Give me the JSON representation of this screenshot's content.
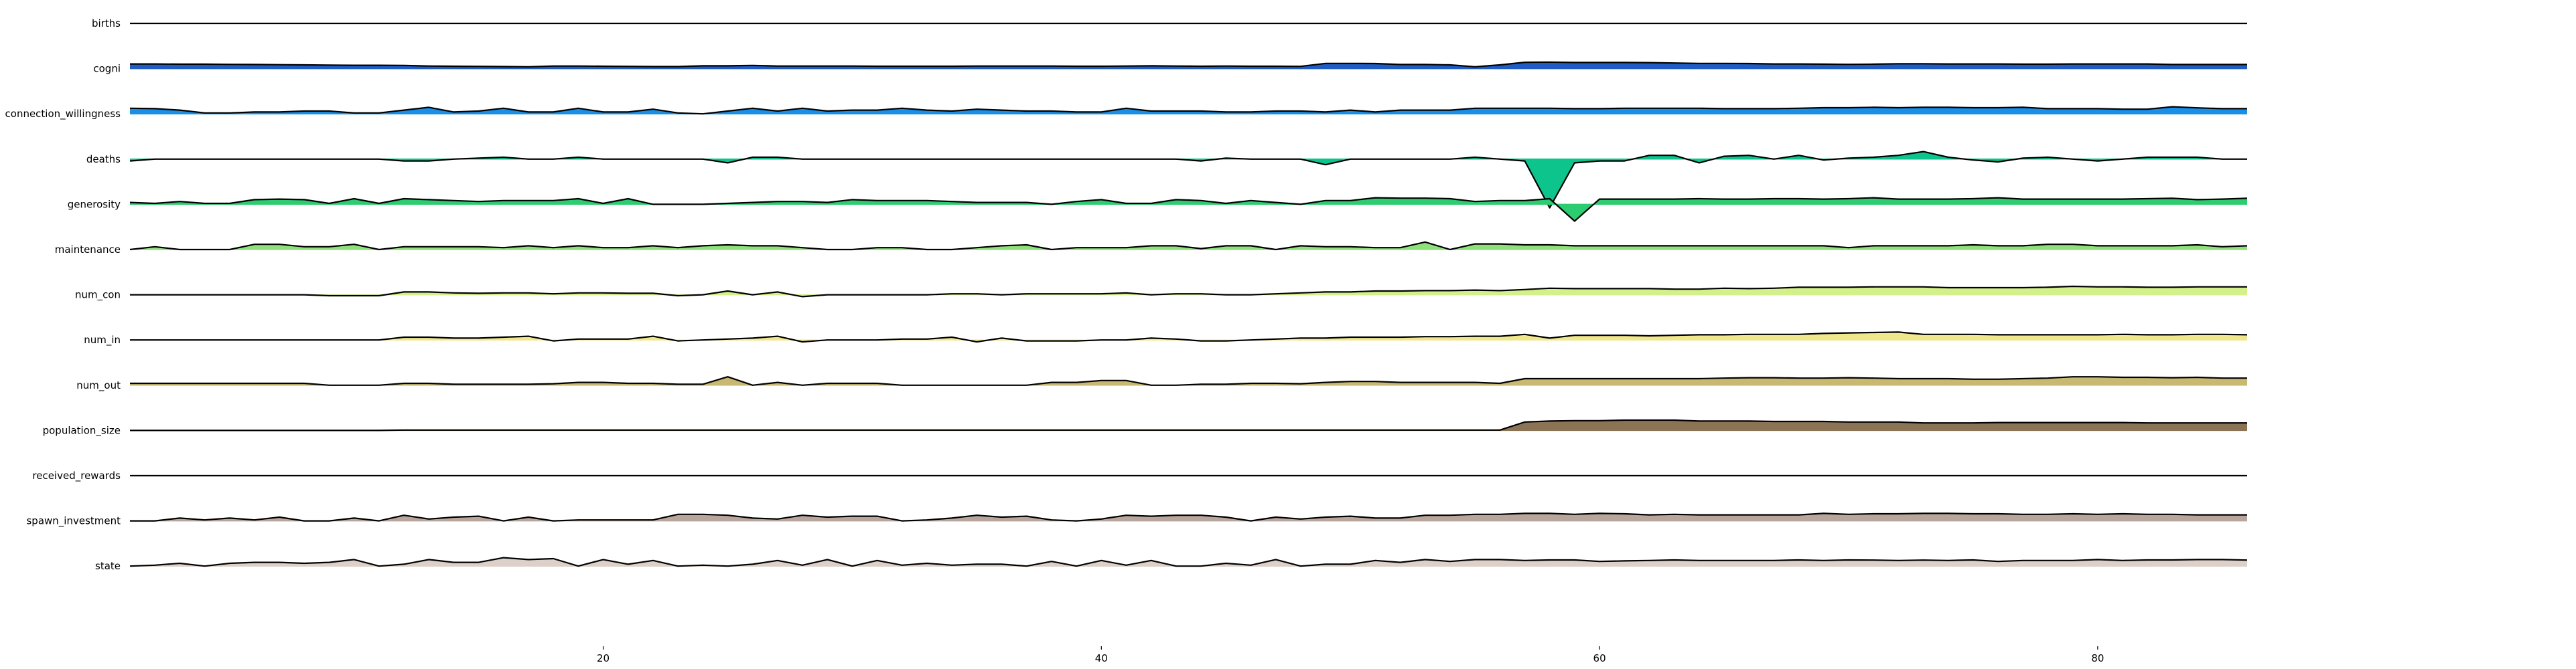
{
  "chart_data": {
    "type": "area",
    "layout": "ridgeline",
    "title": "",
    "xlabel": "",
    "ylabel": "",
    "x": [
      1,
      2,
      3,
      4,
      5,
      6,
      7,
      8,
      9,
      10,
      11,
      12,
      13,
      14,
      15,
      16,
      17,
      18,
      19,
      20,
      21,
      22,
      23,
      24,
      25,
      26,
      27,
      28,
      29,
      30,
      31,
      32,
      33,
      34,
      35,
      36,
      37,
      38,
      39,
      40,
      41,
      42,
      43,
      44,
      45,
      46,
      47,
      48,
      49,
      50,
      51,
      52,
      53,
      54,
      55,
      56,
      57,
      58,
      59,
      60,
      61,
      62,
      63,
      64,
      65,
      66,
      67,
      68,
      69,
      70,
      71,
      72,
      73,
      74,
      75,
      76,
      77,
      78,
      79,
      80,
      81,
      82,
      83,
      84,
      85,
      86
    ],
    "xlim": [
      1,
      86
    ],
    "xticks": [
      20,
      40,
      60,
      80
    ],
    "ylim": [
      -1,
      1
    ],
    "series": [
      {
        "name": "births",
        "color": "#0d0887",
        "values": [
          0,
          0,
          0,
          0,
          0,
          0,
          0,
          0,
          0,
          0,
          0,
          0,
          0,
          0,
          0,
          0,
          0,
          0,
          0,
          0,
          0,
          0,
          0,
          0,
          0,
          0,
          0,
          0,
          0,
          0,
          0,
          0,
          0,
          0,
          0,
          0,
          0,
          0,
          0,
          0,
          0,
          0,
          0,
          0,
          0,
          0,
          0,
          0,
          0,
          0,
          0,
          0,
          0,
          0,
          0,
          0,
          0,
          0,
          0,
          0,
          0,
          0,
          0,
          0,
          0,
          0,
          0,
          0,
          0,
          0,
          0,
          0,
          0,
          0,
          0,
          0,
          0,
          0,
          0,
          0,
          0,
          0,
          0,
          0,
          0,
          0
        ]
      },
      {
        "name": "cogni",
        "color": "#1f5cc4",
        "values": [
          0.25,
          0.25,
          0.24,
          0.24,
          0.23,
          0.22,
          0.21,
          0.2,
          0.19,
          0.18,
          0.18,
          0.17,
          0.14,
          0.13,
          0.12,
          0.11,
          0.1,
          0.14,
          0.14,
          0.13,
          0.12,
          0.11,
          0.11,
          0.15,
          0.15,
          0.17,
          0.14,
          0.14,
          0.14,
          0.14,
          0.13,
          0.13,
          0.13,
          0.13,
          0.14,
          0.14,
          0.14,
          0.14,
          0.13,
          0.13,
          0.14,
          0.15,
          0.14,
          0.13,
          0.14,
          0.13,
          0.13,
          0.12,
          0.28,
          0.28,
          0.27,
          0.22,
          0.22,
          0.2,
          0.1,
          0.2,
          0.34,
          0.35,
          0.33,
          0.33,
          0.33,
          0.32,
          0.3,
          0.28,
          0.28,
          0.27,
          0.25,
          0.25,
          0.24,
          0.23,
          0.24,
          0.26,
          0.26,
          0.25,
          0.25,
          0.25,
          0.24,
          0.24,
          0.25,
          0.25,
          0.25,
          0.25,
          0.22,
          0.22,
          0.22,
          0.22
        ]
      },
      {
        "name": "connection_willingness",
        "color": "#1a8fe8",
        "values": [
          0.3,
          0.28,
          0.2,
          0.05,
          0.05,
          0.1,
          0.1,
          0.15,
          0.15,
          0.05,
          0.05,
          0.2,
          0.35,
          0.1,
          0.15,
          0.3,
          0.1,
          0.1,
          0.3,
          0.1,
          0.1,
          0.25,
          0.05,
          0.0,
          0.15,
          0.3,
          0.15,
          0.3,
          0.15,
          0.2,
          0.2,
          0.3,
          0.2,
          0.15,
          0.25,
          0.2,
          0.15,
          0.15,
          0.1,
          0.1,
          0.3,
          0.15,
          0.15,
          0.15,
          0.1,
          0.1,
          0.15,
          0.15,
          0.1,
          0.2,
          0.1,
          0.2,
          0.2,
          0.2,
          0.3,
          0.3,
          0.3,
          0.3,
          0.28,
          0.28,
          0.3,
          0.3,
          0.3,
          0.3,
          0.28,
          0.28,
          0.28,
          0.3,
          0.33,
          0.33,
          0.35,
          0.33,
          0.35,
          0.35,
          0.33,
          0.33,
          0.35,
          0.28,
          0.28,
          0.28,
          0.25,
          0.25,
          0.38,
          0.32,
          0.28,
          0.28
        ]
      },
      {
        "name": "deaths",
        "color": "#0cc48c",
        "values": [
          -0.1,
          0.0,
          0.0,
          0.0,
          0.0,
          0.0,
          0.0,
          0.0,
          0.0,
          0.0,
          0.0,
          -0.1,
          -0.1,
          0.0,
          0.05,
          0.1,
          0.0,
          0.0,
          0.1,
          0.0,
          0.0,
          0.0,
          0.0,
          0.0,
          -0.2,
          0.1,
          0.1,
          0.0,
          0.0,
          0.0,
          0.0,
          0.0,
          0.0,
          0.0,
          0.0,
          0.0,
          0.0,
          0.0,
          0.0,
          0.0,
          0.0,
          0.0,
          0.0,
          -0.1,
          0.05,
          0.0,
          0.0,
          0.0,
          -0.3,
          0.0,
          0.0,
          0.0,
          0.0,
          0.0,
          0.1,
          0.0,
          -0.1,
          -2.6,
          -0.2,
          -0.1,
          -0.1,
          0.2,
          0.2,
          -0.2,
          0.15,
          0.2,
          0.0,
          0.2,
          -0.05,
          0.05,
          0.1,
          0.2,
          0.4,
          0.1,
          -0.05,
          -0.15,
          0.05,
          0.1,
          0.0,
          -0.1,
          0.0,
          0.1,
          0.1,
          0.1,
          0.0,
          0.0
        ]
      },
      {
        "name": "generosity",
        "color": "#2ecc71",
        "values": [
          0.1,
          0.05,
          0.15,
          0.05,
          0.05,
          0.25,
          0.28,
          0.25,
          0.05,
          0.3,
          0.05,
          0.3,
          0.25,
          0.2,
          0.15,
          0.2,
          0.2,
          0.2,
          0.3,
          0.05,
          0.3,
          0.0,
          0.0,
          0.0,
          0.05,
          0.1,
          0.15,
          0.15,
          0.1,
          0.25,
          0.2,
          0.2,
          0.2,
          0.15,
          0.1,
          0.1,
          0.1,
          0.0,
          0.15,
          0.25,
          0.05,
          0.05,
          0.25,
          0.2,
          0.05,
          0.2,
          0.1,
          0.0,
          0.2,
          0.2,
          0.35,
          0.33,
          0.33,
          0.3,
          0.15,
          0.2,
          0.2,
          0.3,
          -0.9,
          0.28,
          0.28,
          0.28,
          0.28,
          0.3,
          0.28,
          0.28,
          0.3,
          0.3,
          0.28,
          0.3,
          0.35,
          0.28,
          0.28,
          0.28,
          0.3,
          0.35,
          0.28,
          0.28,
          0.28,
          0.28,
          0.28,
          0.3,
          0.32,
          0.25,
          0.28,
          0.32
        ]
      },
      {
        "name": "maintenance",
        "color": "#8ee07a",
        "values": [
          0.0,
          0.15,
          0.0,
          0.0,
          0.0,
          0.28,
          0.28,
          0.15,
          0.15,
          0.28,
          0.0,
          0.15,
          0.15,
          0.15,
          0.15,
          0.1,
          0.2,
          0.1,
          0.2,
          0.1,
          0.1,
          0.2,
          0.1,
          0.2,
          0.25,
          0.2,
          0.2,
          0.1,
          0.0,
          0.0,
          0.1,
          0.1,
          0.0,
          0.0,
          0.1,
          0.2,
          0.25,
          0.0,
          0.1,
          0.1,
          0.1,
          0.2,
          0.2,
          0.05,
          0.2,
          0.2,
          0.0,
          0.2,
          0.15,
          0.15,
          0.1,
          0.1,
          0.4,
          0.0,
          0.3,
          0.3,
          0.25,
          0.25,
          0.2,
          0.2,
          0.2,
          0.2,
          0.2,
          0.2,
          0.2,
          0.2,
          0.2,
          0.2,
          0.2,
          0.1,
          0.2,
          0.2,
          0.2,
          0.2,
          0.25,
          0.2,
          0.2,
          0.28,
          0.28,
          0.2,
          0.2,
          0.2,
          0.2,
          0.25,
          0.15,
          0.2
        ]
      },
      {
        "name": "num_con",
        "color": "#d4f08a",
        "values": [
          0.0,
          0.0,
          0.0,
          0.0,
          0.0,
          0.0,
          0.0,
          0.0,
          -0.05,
          -0.05,
          -0.05,
          0.15,
          0.15,
          0.1,
          0.08,
          0.1,
          0.1,
          0.05,
          0.1,
          0.1,
          0.08,
          0.08,
          -0.05,
          0.0,
          0.2,
          0.0,
          0.15,
          -0.1,
          0.0,
          0.0,
          0.0,
          0.0,
          0.0,
          0.05,
          0.05,
          0.0,
          0.05,
          0.05,
          0.05,
          0.05,
          0.1,
          0.0,
          0.05,
          0.05,
          0.0,
          0.0,
          0.05,
          0.1,
          0.15,
          0.15,
          0.2,
          0.2,
          0.22,
          0.22,
          0.25,
          0.22,
          0.28,
          0.35,
          0.33,
          0.33,
          0.33,
          0.33,
          0.3,
          0.3,
          0.35,
          0.33,
          0.35,
          0.4,
          0.4,
          0.4,
          0.42,
          0.42,
          0.42,
          0.38,
          0.38,
          0.38,
          0.38,
          0.4,
          0.45,
          0.42,
          0.42,
          0.4,
          0.4,
          0.42,
          0.42,
          0.42
        ]
      },
      {
        "name": "num_in",
        "color": "#f0e68c",
        "values": [
          0.0,
          0.0,
          0.0,
          0.0,
          0.0,
          0.0,
          0.0,
          0.0,
          0.0,
          0.0,
          0.0,
          0.15,
          0.15,
          0.1,
          0.1,
          0.15,
          0.2,
          -0.05,
          0.05,
          0.05,
          0.05,
          0.2,
          -0.05,
          0.0,
          0.05,
          0.1,
          0.2,
          -0.1,
          0.0,
          0.0,
          0.0,
          0.05,
          0.05,
          0.15,
          -0.1,
          0.1,
          -0.05,
          -0.05,
          -0.05,
          0.0,
          0.0,
          0.1,
          0.05,
          -0.05,
          -0.05,
          0.0,
          0.05,
          0.1,
          0.1,
          0.15,
          0.15,
          0.15,
          0.18,
          0.18,
          0.2,
          0.2,
          0.3,
          0.1,
          0.25,
          0.25,
          0.25,
          0.22,
          0.25,
          0.28,
          0.28,
          0.3,
          0.3,
          0.3,
          0.35,
          0.38,
          0.4,
          0.42,
          0.3,
          0.3,
          0.3,
          0.28,
          0.28,
          0.28,
          0.28,
          0.28,
          0.3,
          0.28,
          0.28,
          0.3,
          0.3,
          0.28
        ]
      },
      {
        "name": "num_out",
        "color": "#c8b870",
        "values": [
          0.1,
          0.1,
          0.1,
          0.1,
          0.1,
          0.1,
          0.1,
          0.1,
          0.0,
          0.0,
          0.0,
          0.1,
          0.1,
          0.05,
          0.05,
          0.05,
          0.05,
          0.08,
          0.15,
          0.15,
          0.1,
          0.1,
          0.05,
          0.05,
          0.45,
          0.0,
          0.15,
          0.0,
          0.1,
          0.1,
          0.1,
          0.0,
          0.0,
          0.0,
          0.0,
          0.0,
          0.0,
          0.15,
          0.15,
          0.25,
          0.25,
          0.0,
          0.0,
          0.05,
          0.05,
          0.1,
          0.1,
          0.08,
          0.15,
          0.2,
          0.2,
          0.15,
          0.15,
          0.15,
          0.15,
          0.1,
          0.35,
          0.35,
          0.35,
          0.35,
          0.35,
          0.35,
          0.35,
          0.35,
          0.38,
          0.4,
          0.4,
          0.38,
          0.38,
          0.4,
          0.38,
          0.35,
          0.35,
          0.35,
          0.32,
          0.32,
          0.35,
          0.38,
          0.45,
          0.45,
          0.42,
          0.42,
          0.4,
          0.42,
          0.38,
          0.38
        ]
      },
      {
        "name": "population_size",
        "color": "#8b7355",
        "values": [
          0.0,
          0.0,
          0.0,
          0.0,
          0.0,
          0.0,
          0.0,
          0.0,
          0.0,
          0.0,
          0.0,
          0.02,
          0.02,
          0.02,
          0.02,
          0.02,
          0.02,
          0.02,
          0.02,
          0.02,
          0.02,
          0.02,
          0.02,
          0.02,
          0.02,
          0.02,
          0.02,
          0.02,
          0.02,
          0.02,
          0.02,
          0.02,
          0.02,
          0.02,
          0.02,
          0.02,
          0.02,
          0.02,
          0.02,
          0.02,
          0.02,
          0.02,
          0.02,
          0.02,
          0.02,
          0.02,
          0.02,
          0.02,
          0.02,
          0.02,
          0.02,
          0.02,
          0.02,
          0.02,
          0.02,
          0.02,
          0.45,
          0.5,
          0.52,
          0.52,
          0.55,
          0.55,
          0.55,
          0.5,
          0.5,
          0.5,
          0.48,
          0.48,
          0.48,
          0.45,
          0.45,
          0.45,
          0.4,
          0.4,
          0.4,
          0.42,
          0.42,
          0.42,
          0.42,
          0.42,
          0.42,
          0.4,
          0.4,
          0.4,
          0.4,
          0.4
        ]
      },
      {
        "name": "received_rewards",
        "color": "#a0522d",
        "values": [
          0,
          0,
          0,
          0,
          0,
          0,
          0,
          0,
          0,
          0,
          0,
          0,
          0,
          0,
          0,
          0,
          0,
          0,
          0,
          0,
          0,
          0,
          0,
          0,
          0,
          0,
          0,
          0,
          0,
          0,
          0,
          0,
          0,
          0,
          0,
          0,
          0,
          0,
          0,
          0,
          0,
          0,
          0,
          0,
          0,
          0,
          0,
          0,
          0,
          0,
          0,
          0,
          0,
          0,
          0,
          0,
          0,
          0,
          0,
          0,
          0,
          0,
          0,
          0,
          0,
          0,
          0,
          0,
          0,
          0,
          0,
          0,
          0,
          0,
          0,
          0,
          0,
          0,
          0,
          0,
          0,
          0,
          0,
          0,
          0,
          0
        ]
      },
      {
        "name": "spawn_investment",
        "color": "#b8a69c",
        "values": [
          0.0,
          0.0,
          0.15,
          0.05,
          0.15,
          0.05,
          0.2,
          0.0,
          0.0,
          0.15,
          0.0,
          0.3,
          0.1,
          0.2,
          0.25,
          0.0,
          0.2,
          0.0,
          0.05,
          0.05,
          0.05,
          0.05,
          0.35,
          0.35,
          0.3,
          0.15,
          0.1,
          0.3,
          0.2,
          0.25,
          0.25,
          0.0,
          0.05,
          0.15,
          0.3,
          0.2,
          0.25,
          0.05,
          0.0,
          0.1,
          0.3,
          0.25,
          0.3,
          0.3,
          0.2,
          0.0,
          0.2,
          0.1,
          0.2,
          0.25,
          0.15,
          0.15,
          0.3,
          0.3,
          0.35,
          0.35,
          0.4,
          0.4,
          0.35,
          0.4,
          0.38,
          0.32,
          0.35,
          0.32,
          0.32,
          0.32,
          0.32,
          0.32,
          0.4,
          0.35,
          0.38,
          0.38,
          0.4,
          0.4,
          0.38,
          0.38,
          0.35,
          0.35,
          0.38,
          0.35,
          0.38,
          0.35,
          0.35,
          0.32,
          0.32,
          0.32
        ]
      },
      {
        "name": "state",
        "color": "#ddd0c8",
        "values": [
          0.0,
          0.05,
          0.15,
          0.0,
          0.15,
          0.2,
          0.2,
          0.15,
          0.2,
          0.35,
          0.0,
          0.1,
          0.35,
          0.2,
          0.2,
          0.45,
          0.35,
          0.4,
          0.0,
          0.35,
          0.1,
          0.3,
          0.0,
          0.05,
          0.0,
          0.1,
          0.3,
          0.05,
          0.35,
          0.0,
          0.3,
          0.05,
          0.15,
          0.05,
          0.1,
          0.1,
          0.0,
          0.25,
          0.0,
          0.3,
          0.05,
          0.3,
          0.0,
          0.0,
          0.15,
          0.05,
          0.35,
          0.0,
          0.1,
          0.1,
          0.3,
          0.2,
          0.35,
          0.25,
          0.35,
          0.35,
          0.3,
          0.33,
          0.33,
          0.25,
          0.28,
          0.3,
          0.33,
          0.3,
          0.3,
          0.3,
          0.3,
          0.33,
          0.3,
          0.33,
          0.32,
          0.3,
          0.32,
          0.3,
          0.33,
          0.25,
          0.3,
          0.3,
          0.3,
          0.35,
          0.3,
          0.33,
          0.33,
          0.35,
          0.35,
          0.32
        ]
      }
    ]
  }
}
